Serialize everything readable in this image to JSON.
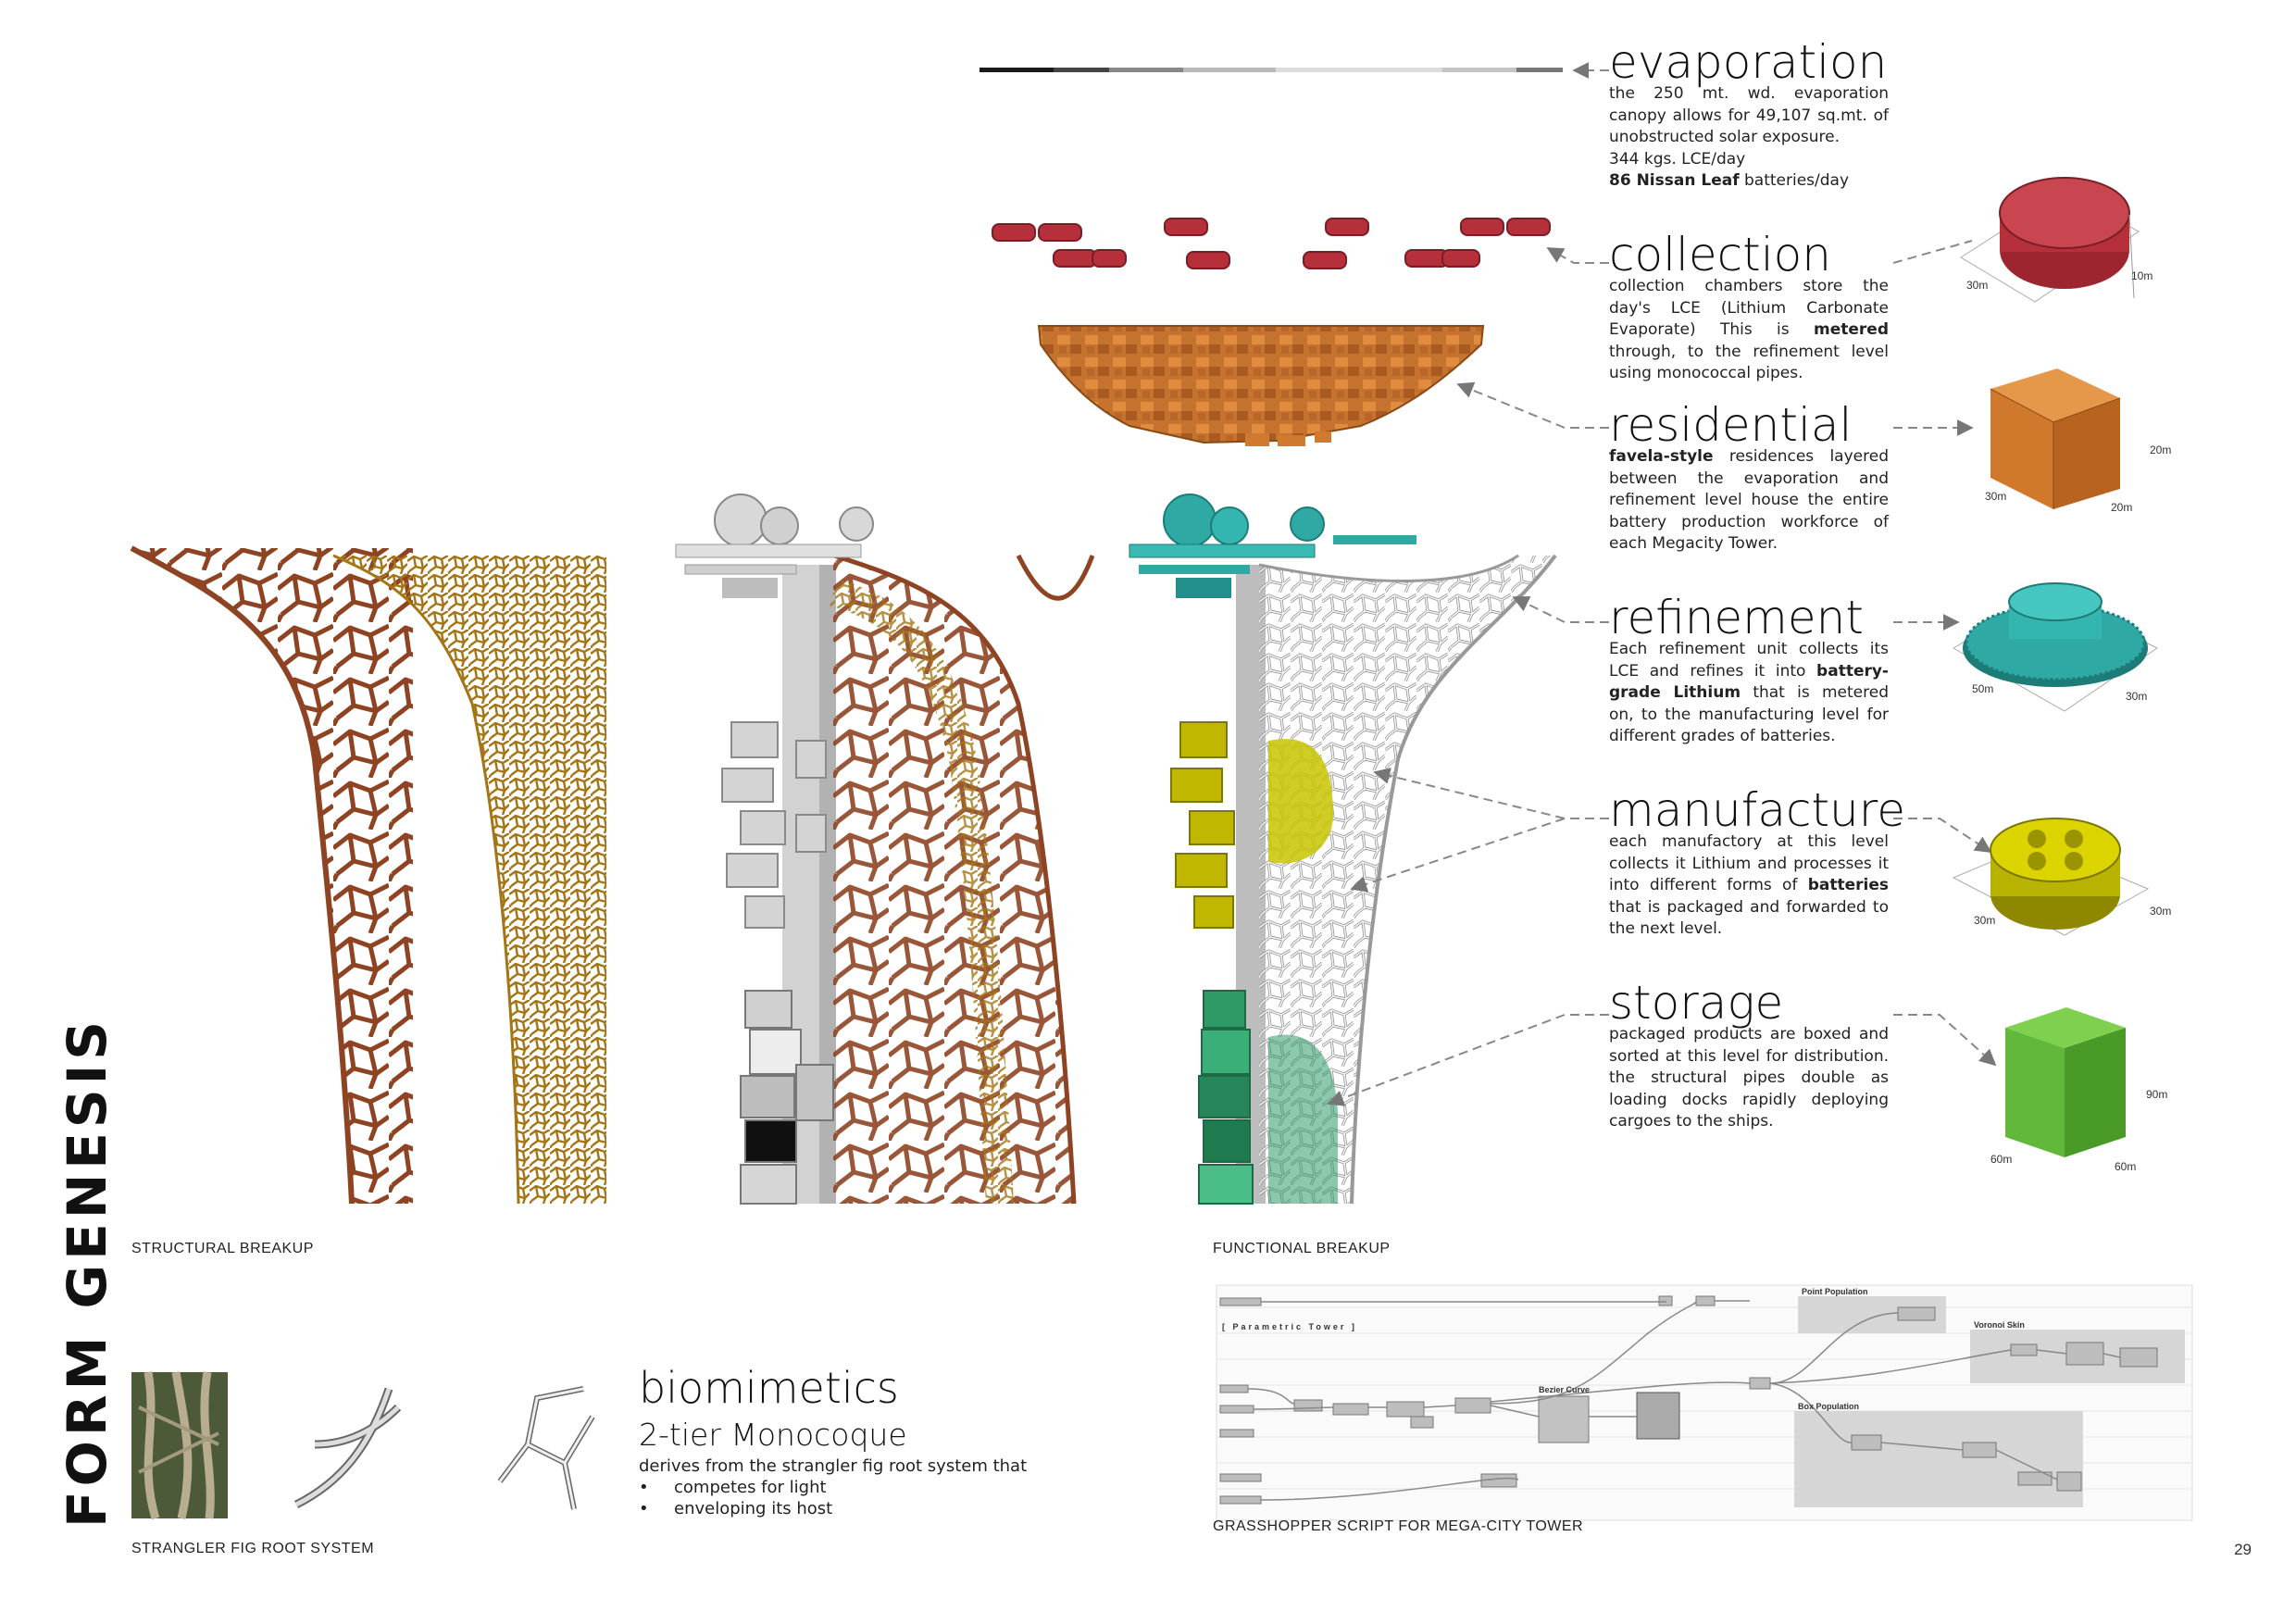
{
  "page_title": "FORM GENESIS",
  "page_number": "29",
  "captions": {
    "structural": "STRUCTURAL BREAKUP",
    "functional": "FUNCTIONAL BREAKUP",
    "fig": "STRANGLER FIG ROOT SYSTEM",
    "grasshopper": "GRASSHOPPER SCRIPT FOR MEGA-CITY TOWER"
  },
  "sections": {
    "evaporation": {
      "title": "evaporation",
      "line1": "the 250 mt. wd. evaporation canopy allows for 49,107 sq.mt. of unobstructed solar exposure.",
      "line2": "344 kgs. LCE/day",
      "line3_bold": "86 Nissan Leaf",
      "line3_rest": " batteries/day"
    },
    "collection": {
      "title": "collection",
      "text_a": "collection chambers store the day's LCE (Lithium Carbonate Evaporate) This is ",
      "bold": "metered",
      "text_b": " through, to the refinement level using monococcal pipes."
    },
    "residential": {
      "title": "residential",
      "bold": "favela-style",
      "text": " residences layered between the evaporation and refinement level house the entire battery production workforce of each Megacity Tower."
    },
    "refinement": {
      "title": "refinement",
      "text_a": "Each refinement unit collects its LCE and refines it into ",
      "bold": "battery-grade Lithium",
      "text_b": " that is metered on, to the manufacturing level for different grades of batteries."
    },
    "manufacture": {
      "title": "manufacture",
      "text_a": "each manufactory at this level collects it Lithium and processes it into different forms of ",
      "bold": "batteries",
      "text_b": " that is packaged and forwarded to the next level."
    },
    "storage": {
      "title": "storage",
      "text": "packaged products are boxed and sorted at this level for distribution. the structural pipes double as loading docks rapidly deploying cargoes to the ships."
    }
  },
  "dimensions": {
    "collection": [
      "30m",
      "10m"
    ],
    "residential": [
      "20m",
      "30m",
      "20m"
    ],
    "refinement": [
      "50m",
      "30m"
    ],
    "manufacture": [
      "30m",
      "30m"
    ],
    "storage": [
      "90m",
      "60m",
      "60m"
    ]
  },
  "biomimetics": {
    "title": "biomimetics",
    "subtitle": "2-tier Monocoque",
    "text": "derives from the strangler fig root system that",
    "items": [
      "competes for light",
      "enveloping its host"
    ]
  },
  "grasshopper": {
    "group1": "[ Parametric Tower ]",
    "group2": "Point Population",
    "group3": "Voronoi Skin",
    "group4": "Box Population",
    "group5": "Bezier Curve"
  },
  "colors": {
    "rust": "#9a4a28",
    "gold": "#b8861e",
    "cyan": "#2fa9a4",
    "olive": "#b8b200",
    "green": "#2e9a66",
    "collection_red": "#b5303a",
    "residential_orange": "#d0782c",
    "storage_green": "#62b83a"
  }
}
